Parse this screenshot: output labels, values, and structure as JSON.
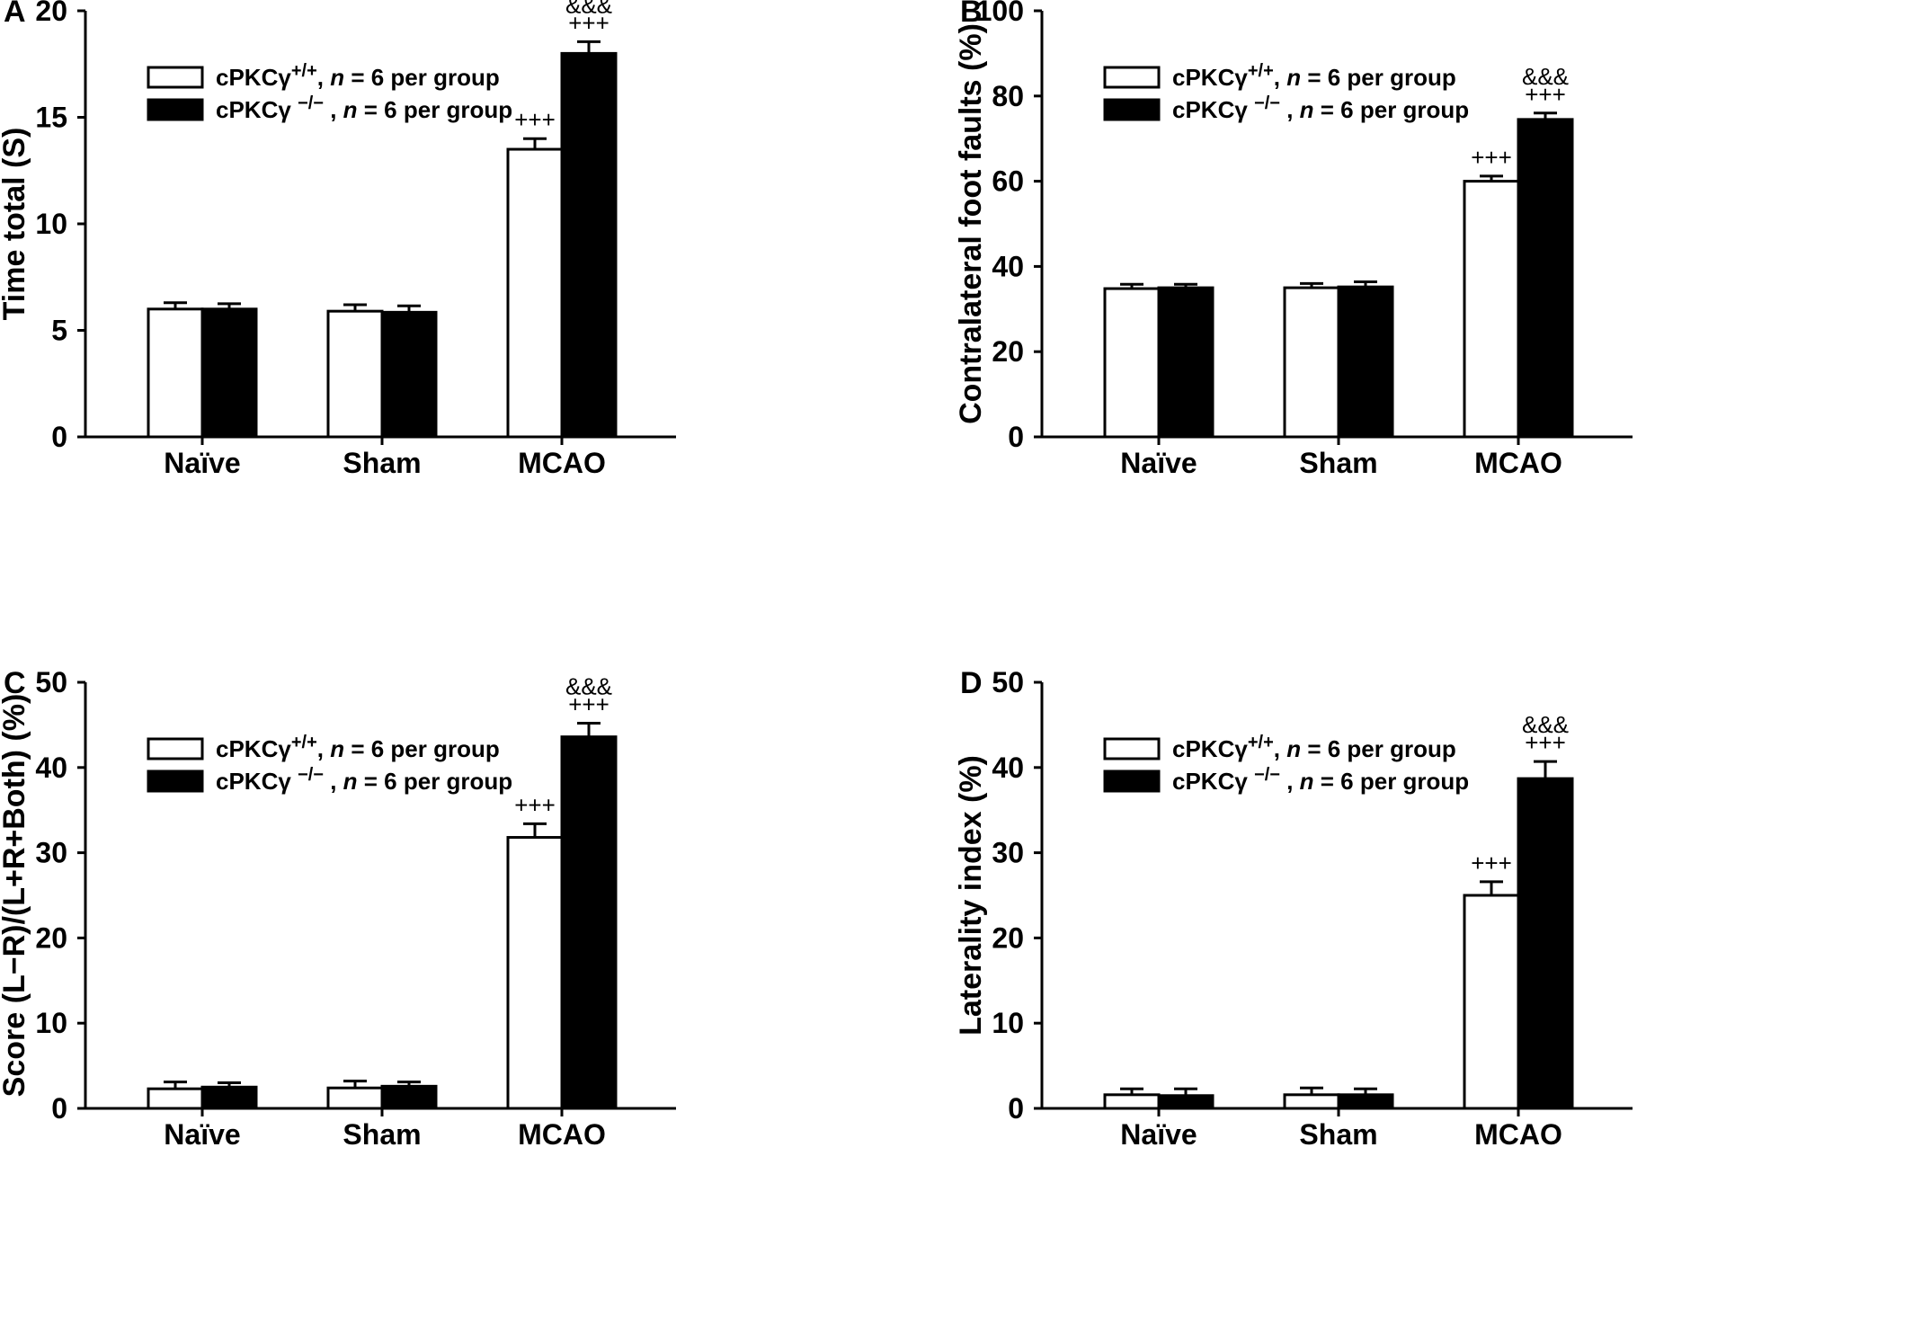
{
  "chart_data": [
    {
      "type": "bar",
      "panel_label": "A",
      "ylabel": "Time total (S)",
      "ylim": [
        0,
        20
      ],
      "yticks": [
        0,
        5,
        10,
        15,
        20
      ],
      "categories": [
        "Naïve",
        "Sham",
        "MCAO"
      ],
      "series": [
        {
          "name": "cPKCγ+/+, n = 6 per group",
          "fill": "#ffffff",
          "values": [
            6.0,
            5.9,
            13.5
          ],
          "errors": [
            0.3,
            0.3,
            0.5
          ]
        },
        {
          "name": "cPKCγ −/−, n = 6 per group",
          "fill": "#000000",
          "values": [
            6.0,
            5.85,
            18.0
          ],
          "errors": [
            0.25,
            0.3,
            0.55
          ]
        }
      ],
      "annotations": [
        {
          "category": 2,
          "series": 0,
          "lines": [
            "+++"
          ]
        },
        {
          "category": 2,
          "series": 1,
          "lines": [
            "&&&",
            "+++"
          ]
        }
      ],
      "legend": {
        "placement": "top-left",
        "entries": [
          {
            "main": "cPKCγ",
            "sup": "+/+",
            "sep": ", ",
            "n_italic": "n",
            "rest": " = 6 per group"
          },
          {
            "main": "cPKCγ ",
            "sup": "−/−",
            "sep": " , ",
            "n_italic": "n",
            "rest": " = 6 per group"
          }
        ]
      }
    },
    {
      "type": "bar",
      "panel_label": "B",
      "ylabel": "Contralateral foot faults (%)",
      "ylim": [
        0,
        100
      ],
      "yticks": [
        0,
        20,
        40,
        60,
        80,
        100
      ],
      "categories": [
        "Naïve",
        "Sham",
        "MCAO"
      ],
      "series": [
        {
          "name": "cPKCγ+/+, n = 6 per group",
          "fill": "#ffffff",
          "values": [
            34.8,
            35.0,
            60.0
          ],
          "errors": [
            1.0,
            1.0,
            1.2
          ]
        },
        {
          "name": "cPKCγ −/−, n = 6 per group",
          "fill": "#000000",
          "values": [
            35.0,
            35.2,
            74.5
          ],
          "errors": [
            0.8,
            1.2,
            1.5
          ]
        }
      ],
      "annotations": [
        {
          "category": 2,
          "series": 0,
          "lines": [
            "+++"
          ]
        },
        {
          "category": 2,
          "series": 1,
          "lines": [
            "&&&",
            "+++"
          ]
        }
      ],
      "legend": {
        "placement": "top-left",
        "entries": [
          {
            "main": "cPKCγ",
            "sup": "+/+",
            "sep": ", ",
            "n_italic": "n",
            "rest": " = 6 per group"
          },
          {
            "main": "cPKCγ ",
            "sup": "−/−",
            "sep": " , ",
            "n_italic": "n",
            "rest": " = 6 per group"
          }
        ]
      }
    },
    {
      "type": "bar",
      "panel_label": "C",
      "ylabel": "Score (L−R)/(L+R+Both) (%)",
      "ylim": [
        0,
        50
      ],
      "yticks": [
        0,
        10,
        20,
        30,
        40,
        50
      ],
      "categories": [
        "Naïve",
        "Sham",
        "MCAO"
      ],
      "series": [
        {
          "name": "cPKCγ+/+, n = 6 per group",
          "fill": "#ffffff",
          "values": [
            2.3,
            2.4,
            31.8
          ],
          "errors": [
            0.8,
            0.8,
            1.6
          ]
        },
        {
          "name": "cPKCγ −/−, n = 6 per group",
          "fill": "#000000",
          "values": [
            2.5,
            2.6,
            43.6
          ],
          "errors": [
            0.5,
            0.5,
            1.6
          ]
        }
      ],
      "annotations": [
        {
          "category": 2,
          "series": 0,
          "lines": [
            "+++"
          ]
        },
        {
          "category": 2,
          "series": 1,
          "lines": [
            "&&&",
            "+++"
          ]
        }
      ],
      "legend": {
        "placement": "top-left",
        "entries": [
          {
            "main": "cPKCγ",
            "sup": "+/+",
            "sep": ", ",
            "n_italic": "n",
            "rest": " = 6 per group"
          },
          {
            "main": "cPKCγ ",
            "sup": "−/−",
            "sep": " , ",
            "n_italic": "n",
            "rest": " = 6 per group"
          }
        ]
      }
    },
    {
      "type": "bar",
      "panel_label": "D",
      "ylabel": "Laterality index (%)",
      "ylim": [
        0,
        50
      ],
      "yticks": [
        0,
        10,
        20,
        30,
        40,
        50
      ],
      "categories": [
        "Naïve",
        "Sham",
        "MCAO"
      ],
      "series": [
        {
          "name": "cPKCγ+/+, n = 6 per group",
          "fill": "#ffffff",
          "values": [
            1.6,
            1.6,
            25.0
          ],
          "errors": [
            0.7,
            0.8,
            1.6
          ]
        },
        {
          "name": "cPKCγ −/−, n = 6 per group",
          "fill": "#000000",
          "values": [
            1.5,
            1.6,
            38.7
          ],
          "errors": [
            0.8,
            0.7,
            2.0
          ]
        }
      ],
      "annotations": [
        {
          "category": 2,
          "series": 0,
          "lines": [
            "+++"
          ]
        },
        {
          "category": 2,
          "series": 1,
          "lines": [
            "&&&",
            "+++"
          ]
        }
      ],
      "legend": {
        "placement": "top-left",
        "entries": [
          {
            "main": "cPKCγ",
            "sup": "+/+",
            "sep": ", ",
            "n_italic": "n",
            "rest": " = 6 per group"
          },
          {
            "main": "cPKCγ ",
            "sup": "−/−",
            "sep": " , ",
            "n_italic": "n",
            "rest": " = 6 per group"
          }
        ]
      }
    }
  ]
}
